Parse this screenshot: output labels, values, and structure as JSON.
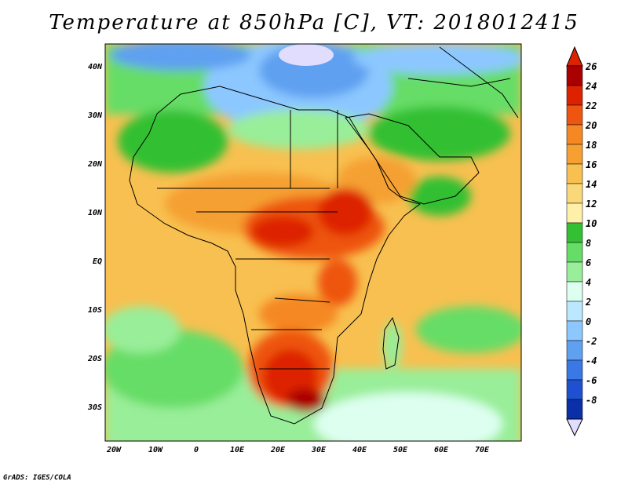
{
  "title": "Temperature at 850hPa [C], VT: 2018012415",
  "credit": "GrADS: IGES/COLA",
  "axes": {
    "lat_labels": [
      "40N",
      "30N",
      "20N",
      "10N",
      "EQ",
      "10S",
      "20S",
      "30S"
    ],
    "lon_labels": [
      "20W",
      "10W",
      "0",
      "10E",
      "20E",
      "30E",
      "40E",
      "50E",
      "60E",
      "70E"
    ]
  },
  "colorbar": {
    "labels": [
      "26",
      "24",
      "22",
      "20",
      "18",
      "16",
      "14",
      "12",
      "10",
      "8",
      "6",
      "4",
      "2",
      "0",
      "-2",
      "-4",
      "-6",
      "-8"
    ],
    "colors": [
      "#aa0000",
      "#dd2200",
      "#ee5511",
      "#f58822",
      "#f5a030",
      "#f8c050",
      "#fbd877",
      "#fef0a8",
      "#33c033",
      "#66dd66",
      "#99ee99",
      "#ddfff0",
      "#bbe8ff",
      "#8cc8ff",
      "#5fa0f0",
      "#3a78e6",
      "#1f50d0",
      "#0a2fa8",
      "#061a70"
    ],
    "top_arrow_color": "#dd2200",
    "bottom_arrow_color": "#e0ddff"
  }
}
